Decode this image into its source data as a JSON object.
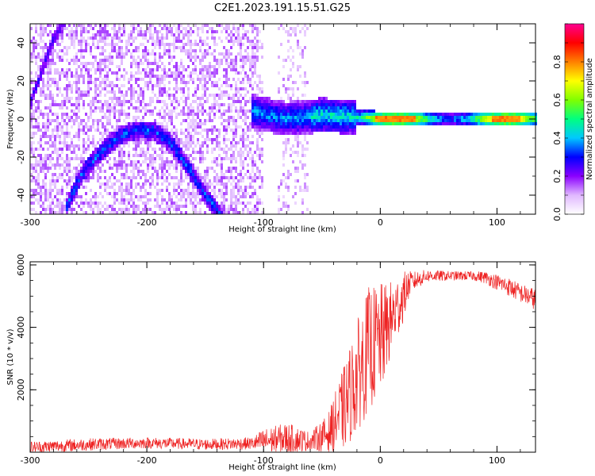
{
  "figure_title": "C2E1.2023.191.15.51.G25",
  "chart_data": [
    {
      "type": "heatmap",
      "title": "",
      "xlabel": "Height of straight line (km)",
      "ylabel": "Frequency (Hz)",
      "xlim": [
        -300,
        133
      ],
      "ylim": [
        -50,
        50
      ],
      "xticks": [
        -300,
        -200,
        -100,
        0,
        100
      ],
      "yticks": [
        -40,
        -20,
        0,
        20,
        40
      ],
      "colorbar": {
        "label": "Normalized spectral amplitude",
        "range": [
          0.0,
          1.0
        ],
        "ticks": [
          0.0,
          0.2,
          0.4,
          0.6,
          0.8
        ],
        "colormap": [
          "#ffffff",
          "#e0b8ff",
          "#8b00ff",
          "#0000ff",
          "#00c8ff",
          "#00ff80",
          "#80ff00",
          "#ffff00",
          "#ff8000",
          "#ff0000",
          "#ff0090"
        ]
      },
      "features": [
        {
          "name": "arc",
          "x": [
            -270,
            -255,
            -240,
            -225,
            -210,
            -195,
            -180,
            -165,
            -150,
            -135
          ],
          "y": [
            -48,
            -28,
            -18,
            -10,
            -6,
            -6,
            -12,
            -25,
            -40,
            -52
          ]
        },
        {
          "name": "rising_line",
          "x": [
            -300,
            -290,
            -280,
            -270
          ],
          "y": [
            8,
            25,
            42,
            52
          ]
        },
        {
          "name": "main_echo",
          "x": [
            -110,
            -80,
            -50,
            -20,
            0,
            30,
            60,
            90,
            110,
            133
          ],
          "y": [
            4,
            0,
            2,
            1,
            0,
            0,
            0,
            0,
            0,
            0
          ]
        }
      ],
      "peak_amplitude_region_km": [
        -10,
        115
      ]
    },
    {
      "type": "line",
      "title": "",
      "xlabel": "Height of straight line (km)",
      "ylabel": "SNR (10 * v/v)",
      "xlim": [
        -300,
        133
      ],
      "ylim": [
        0,
        6100
      ],
      "xticks": [
        -300,
        -200,
        -100,
        0,
        100
      ],
      "yticks": [
        2000,
        4000,
        6000
      ],
      "color": "#ee2222",
      "x": [
        -300,
        -250,
        -200,
        -150,
        -110,
        -100,
        -80,
        -60,
        -45,
        -30,
        -20,
        -10,
        0,
        10,
        20,
        25,
        30,
        40,
        60,
        80,
        90,
        100,
        110,
        120,
        133
      ],
      "y": [
        150,
        250,
        300,
        250,
        280,
        350,
        450,
        350,
        600,
        1500,
        2400,
        3300,
        3600,
        4300,
        5000,
        5400,
        5500,
        5650,
        5650,
        5650,
        5600,
        5450,
        5300,
        5100,
        4900
      ],
      "noise": [
        200,
        200,
        180,
        180,
        200,
        400,
        500,
        300,
        600,
        1400,
        1800,
        2000,
        1800,
        1200,
        800,
        400,
        300,
        200,
        150,
        150,
        200,
        250,
        300,
        300,
        350
      ]
    }
  ]
}
